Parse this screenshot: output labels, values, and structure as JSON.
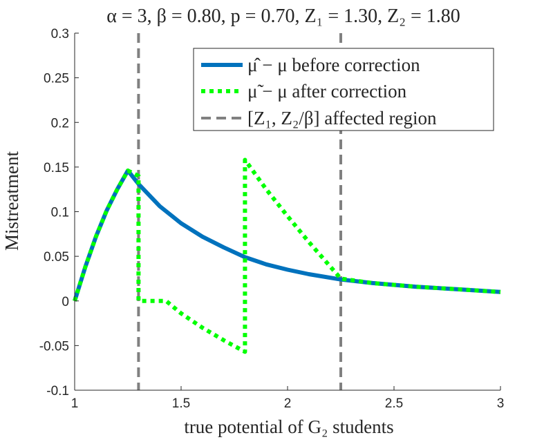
{
  "chart_data": {
    "type": "line",
    "title": "α = 3, β = 0.80, p = 0.70, Z₁ = 1.30, Z₂ = 1.80",
    "xlabel": "true potential of G₂ students",
    "ylabel": "Mistreatment",
    "xlim": [
      1,
      3
    ],
    "ylim": [
      -0.1,
      0.3
    ],
    "x_ticks": [
      1,
      1.5,
      2,
      2.5,
      3
    ],
    "x_tick_labels": [
      "1",
      "1.5",
      "2",
      "2.5",
      "3"
    ],
    "y_ticks": [
      -0.1,
      -0.05,
      0,
      0.05,
      0.1,
      0.15,
      0.2,
      0.25,
      0.3
    ],
    "y_tick_labels": [
      "-0.1",
      "-0.05",
      "0",
      "0.05",
      "0.1",
      "0.15",
      "0.2",
      "0.25",
      "0.3"
    ],
    "grid": false,
    "legend_position": "top-right",
    "series": [
      {
        "name": "μ̂ − μ before correction",
        "style": "solid",
        "color": "#0072BD",
        "x": [
          1.0,
          1.05,
          1.1,
          1.15,
          1.2,
          1.25,
          1.3,
          1.4,
          1.5,
          1.6,
          1.7,
          1.8,
          1.9,
          2.0,
          2.1,
          2.25,
          2.4,
          2.6,
          2.8,
          3.0
        ],
        "y": [
          0.0,
          0.038,
          0.072,
          0.101,
          0.125,
          0.146,
          0.131,
          0.106,
          0.087,
          0.072,
          0.06,
          0.049,
          0.041,
          0.035,
          0.03,
          0.024,
          0.02,
          0.016,
          0.013,
          0.01
        ]
      },
      {
        "name": "μ̃ − μ after correction",
        "style": "dotted",
        "color": "#00FF00",
        "x": [
          1.0,
          1.05,
          1.1,
          1.15,
          1.2,
          1.25,
          1.3,
          1.3,
          1.43,
          1.5,
          1.6,
          1.7,
          1.8,
          1.8,
          1.9,
          2.0,
          2.1,
          2.25,
          2.4,
          2.6,
          2.8,
          3.0
        ],
        "y": [
          0.0,
          0.038,
          0.072,
          0.101,
          0.125,
          0.146,
          0.14,
          0.0,
          0.0,
          -0.014,
          -0.03,
          -0.044,
          -0.057,
          0.158,
          0.125,
          0.095,
          0.066,
          0.025,
          0.02,
          0.016,
          0.013,
          0.01
        ]
      },
      {
        "name": "[Z₁, Z₂/β] affected region",
        "style": "dashed",
        "color": "#808080",
        "vlines": [
          1.3,
          2.25
        ]
      }
    ]
  }
}
